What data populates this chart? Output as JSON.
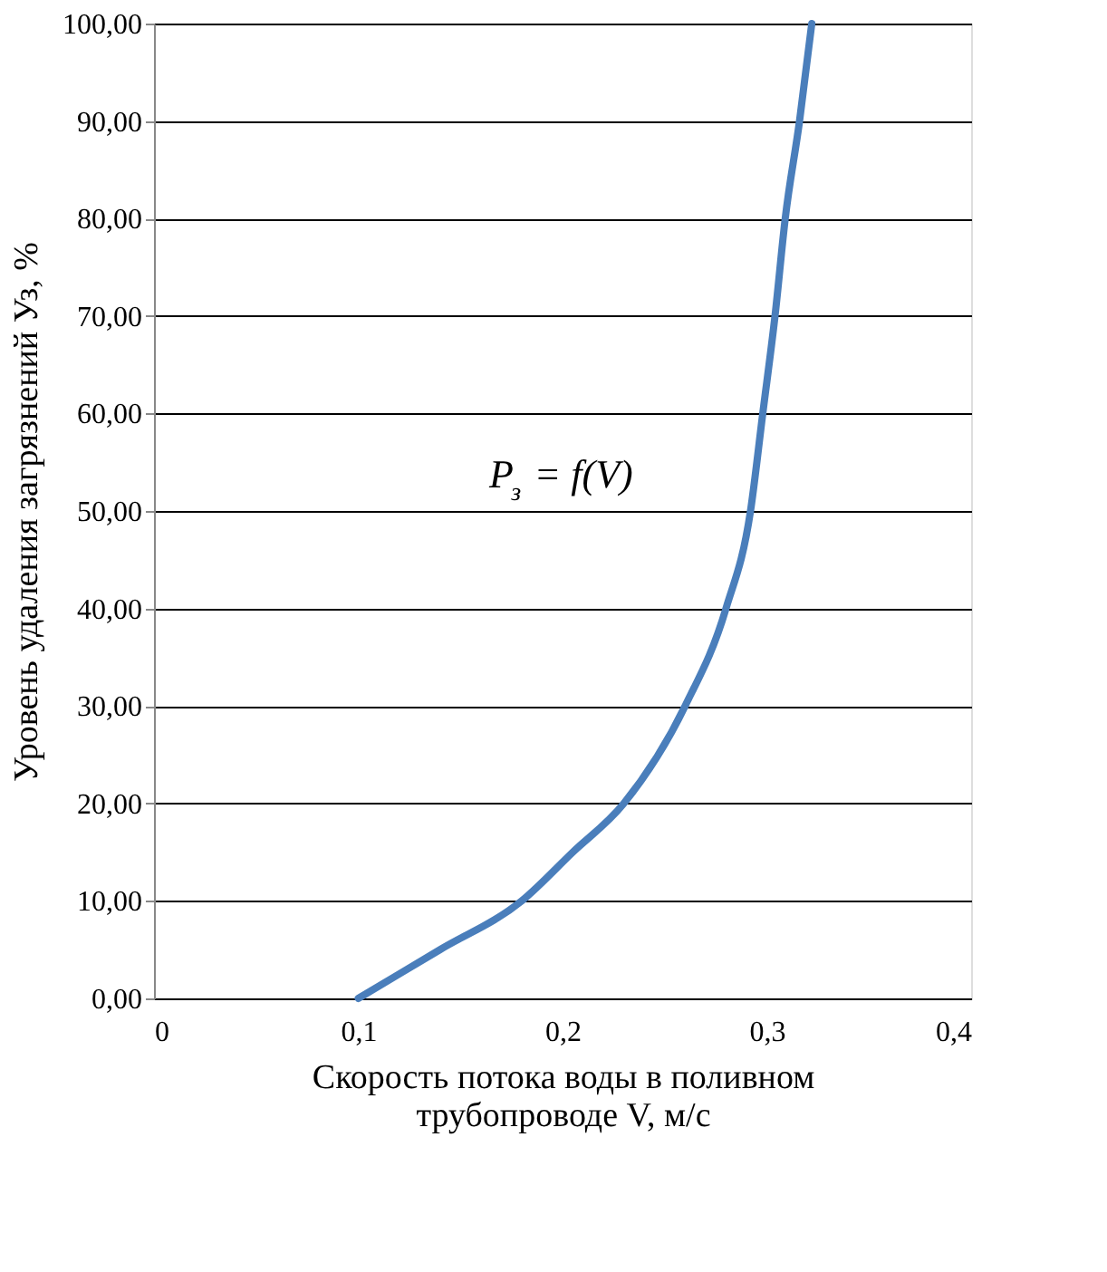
{
  "chart_data": {
    "type": "line",
    "x": [
      0.1,
      0.14,
      0.18,
      0.205,
      0.23,
      0.26,
      0.28,
      0.292,
      0.298,
      0.304,
      0.309,
      0.316,
      0.322
    ],
    "series": [
      {
        "color": "#4a7ebb",
        "values": [
          0,
          5,
          10,
          15,
          20,
          30,
          40,
          50,
          60,
          70,
          80,
          90,
          100
        ]
      }
    ],
    "xlabel": "Скорость потока воды в поливном\nтрубопроводе  V, м/с",
    "ylabel": "Уровень удаления  загрязнений  Уз, %",
    "annotations": [
      "P$_{з}$ = f(V)"
    ],
    "xlim": [
      0,
      0.4
    ],
    "xticks": [
      {
        "value": 0,
        "label": "0"
      },
      {
        "value": 0.1,
        "label": "0,1"
      },
      {
        "value": 0.2,
        "label": "0,2"
      },
      {
        "value": 0.3,
        "label": "0,3"
      },
      {
        "value": 0.4,
        "label": "0,4"
      }
    ],
    "ylim": [
      0,
      100
    ],
    "yticks": [
      {
        "value": 0,
        "label": "0,00"
      },
      {
        "value": 10,
        "label": "10,00"
      },
      {
        "value": 20,
        "label": "20,00"
      },
      {
        "value": 30,
        "label": "30,00"
      },
      {
        "value": 40,
        "label": "40,00"
      },
      {
        "value": 50,
        "label": "50,00"
      },
      {
        "value": 60,
        "label": "60,00"
      },
      {
        "value": 70,
        "label": "70,00"
      },
      {
        "value": 80,
        "label": "80,00"
      },
      {
        "value": 90,
        "label": "90,00"
      },
      {
        "value": 100,
        "label": "100,00"
      }
    ],
    "grid": "y",
    "marker": "none",
    "line_style": "solid"
  }
}
